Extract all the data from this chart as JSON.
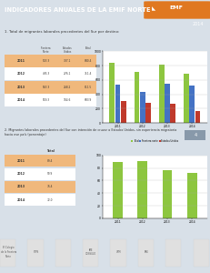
{
  "title": "INDICADORES ANUALES DE LA EMIF NORTE",
  "title_year": "2014",
  "header_bg": "#606e7c",
  "header_text_color": "#ffffff",
  "orange_color": "#e07820",
  "body_bg": "#d8e0e8",
  "section_bg": "#c8d4dc",
  "section1_title": "1. Total de migrantes laborales procedentes del Sur por destino:",
  "section2_title": "2. Migrantes laborales procedentes del Sur con intención de cruzar a Estados Unidos, sin experiencia migratoria\nhacia ese país (porcentaje)",
  "section2_tag": "4",
  "table1_years": [
    "2011",
    "2012",
    "2013",
    "2014"
  ],
  "table1_data": [
    [
      533.3,
      307.1,
      840.4
    ],
    [
      435.3,
      276.1,
      711.4
    ],
    [
      543.3,
      268.2,
      811.5
    ],
    [
      519.3,
      164.6,
      683.9
    ]
  ],
  "table1_row_colors": [
    "#f0b87c",
    "#ffffff",
    "#f0b87c",
    "#ffffff"
  ],
  "chart1_years": [
    "2011",
    "2012",
    "2013",
    "2014"
  ],
  "chart1_total": [
    840.4,
    711.4,
    811.5,
    683.9
  ],
  "chart1_frontera": [
    533.3,
    435.3,
    543.3,
    519.3
  ],
  "chart1_estados": [
    307.1,
    276.1,
    268.2,
    164.6
  ],
  "color_total": "#8dc63f",
  "color_frontera": "#4472c4",
  "color_estados": "#c0392b",
  "legend1": [
    "Total",
    "Frontera norte",
    "Estados Unidos"
  ],
  "table2_years": [
    "2011",
    "2012",
    "2013",
    "2014"
  ],
  "table2_data": [
    89.4,
    90.9,
    76.4,
    72.0
  ],
  "table2_row_colors": [
    "#f0b87c",
    "#ffffff",
    "#f0b87c",
    "#ffffff"
  ],
  "chart2_values": [
    89.4,
    90.9,
    76.4,
    72.0
  ],
  "chart2_years": [
    "2011",
    "2012",
    "2013",
    "2014"
  ],
  "color_chart2": "#8dc63f",
  "footer_bg": "#556070",
  "logos_bg": "#ffffff"
}
